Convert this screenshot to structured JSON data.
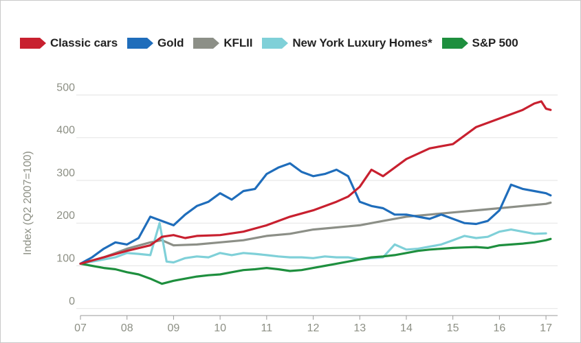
{
  "chart_data": {
    "type": "line",
    "title": "",
    "xlabel": "",
    "ylabel": "Index (Q2 2007=100)",
    "xlim": [
      2007,
      2017.25
    ],
    "ylim": [
      -10,
      520
    ],
    "x_ticks": [
      {
        "label": "07",
        "value": 2007
      },
      {
        "label": "08",
        "value": 2008
      },
      {
        "label": "09",
        "value": 2009
      },
      {
        "label": "10",
        "value": 2010
      },
      {
        "label": "11",
        "value": 2011
      },
      {
        "label": "12",
        "value": 2012
      },
      {
        "label": "13",
        "value": 2013
      },
      {
        "label": "14",
        "value": 2014
      },
      {
        "label": "15",
        "value": 2015
      },
      {
        "label": "16",
        "value": 2016
      },
      {
        "label": "17",
        "value": 2017
      }
    ],
    "y_ticks": [
      0,
      100,
      200,
      300,
      400,
      500
    ],
    "grid": true,
    "legend": "top",
    "series": [
      {
        "name": "Classic cars",
        "color": "#c8202f",
        "x": [
          2007,
          2007.5,
          2008,
          2008.5,
          2008.75,
          2009,
          2009.25,
          2009.5,
          2010,
          2010.5,
          2011,
          2011.5,
          2012,
          2012.5,
          2012.75,
          2013,
          2013.25,
          2013.5,
          2014,
          2014.5,
          2015,
          2015.5,
          2016,
          2016.5,
          2016.75,
          2016.9,
          2017,
          2017.1
        ],
        "y": [
          105,
          120,
          135,
          148,
          168,
          172,
          165,
          170,
          172,
          180,
          195,
          215,
          230,
          250,
          262,
          285,
          325,
          310,
          350,
          375,
          385,
          425,
          445,
          465,
          480,
          485,
          468,
          465
        ]
      },
      {
        "name": "Gold",
        "color": "#1f6dbb",
        "x": [
          2007,
          2007.25,
          2007.5,
          2007.75,
          2008,
          2008.25,
          2008.5,
          2008.75,
          2009,
          2009.25,
          2009.5,
          2009.75,
          2010,
          2010.25,
          2010.5,
          2010.75,
          2011,
          2011.25,
          2011.5,
          2011.75,
          2012,
          2012.25,
          2012.5,
          2012.75,
          2013,
          2013.25,
          2013.5,
          2013.75,
          2014,
          2014.25,
          2014.5,
          2014.75,
          2015,
          2015.25,
          2015.5,
          2015.75,
          2016,
          2016.25,
          2016.5,
          2016.75,
          2017,
          2017.1
        ],
        "y": [
          105,
          120,
          140,
          155,
          150,
          165,
          215,
          205,
          195,
          220,
          240,
          250,
          270,
          255,
          275,
          280,
          315,
          330,
          340,
          320,
          310,
          315,
          325,
          310,
          250,
          240,
          235,
          220,
          220,
          215,
          210,
          220,
          210,
          200,
          198,
          205,
          230,
          290,
          280,
          275,
          270,
          265
        ]
      },
      {
        "name": "KFLII",
        "color": "#8c8f87",
        "x": [
          2007,
          2007.5,
          2008,
          2008.5,
          2008.75,
          2009,
          2009.5,
          2010,
          2010.5,
          2011,
          2011.5,
          2012,
          2012.5,
          2013,
          2013.5,
          2014,
          2014.5,
          2015,
          2015.5,
          2016,
          2016.5,
          2017,
          2017.1
        ],
        "y": [
          105,
          120,
          140,
          155,
          160,
          148,
          150,
          155,
          160,
          170,
          175,
          185,
          190,
          195,
          205,
          215,
          220,
          225,
          230,
          235,
          240,
          245,
          248
        ]
      },
      {
        "name": "New York Luxury Homes*",
        "color": "#7fd0d8",
        "x": [
          2007,
          2007.25,
          2007.5,
          2007.75,
          2008,
          2008.25,
          2008.5,
          2008.7,
          2008.85,
          2009,
          2009.25,
          2009.5,
          2009.75,
          2010,
          2010.25,
          2010.5,
          2010.75,
          2011,
          2011.25,
          2011.5,
          2011.75,
          2012,
          2012.25,
          2012.5,
          2012.75,
          2013,
          2013.25,
          2013.5,
          2013.75,
          2014,
          2014.25,
          2014.5,
          2014.75,
          2015,
          2015.25,
          2015.5,
          2015.75,
          2016,
          2016.25,
          2016.5,
          2016.75,
          2017
        ],
        "y": [
          105,
          110,
          115,
          120,
          130,
          128,
          125,
          200,
          110,
          108,
          118,
          122,
          120,
          130,
          125,
          130,
          128,
          125,
          122,
          120,
          120,
          118,
          122,
          120,
          120,
          115,
          118,
          120,
          150,
          138,
          140,
          145,
          150,
          160,
          170,
          165,
          168,
          180,
          185,
          180,
          175,
          176
        ]
      },
      {
        "name": "S&P 500",
        "color": "#1e8f3e",
        "x": [
          2007,
          2007.25,
          2007.5,
          2007.75,
          2008,
          2008.25,
          2008.5,
          2008.75,
          2009,
          2009.25,
          2009.5,
          2009.75,
          2010,
          2010.25,
          2010.5,
          2010.75,
          2011,
          2011.25,
          2011.5,
          2011.75,
          2012,
          2012.25,
          2012.5,
          2012.75,
          2013,
          2013.25,
          2013.5,
          2013.75,
          2014,
          2014.25,
          2014.5,
          2014.75,
          2015,
          2015.25,
          2015.5,
          2015.75,
          2016,
          2016.25,
          2016.5,
          2016.75,
          2017,
          2017.1
        ],
        "y": [
          105,
          100,
          95,
          92,
          85,
          80,
          70,
          58,
          65,
          70,
          75,
          78,
          80,
          85,
          90,
          92,
          95,
          92,
          88,
          90,
          95,
          100,
          105,
          110,
          115,
          120,
          122,
          125,
          130,
          135,
          138,
          140,
          142,
          143,
          144,
          142,
          148,
          150,
          152,
          155,
          160,
          163
        ]
      }
    ]
  }
}
